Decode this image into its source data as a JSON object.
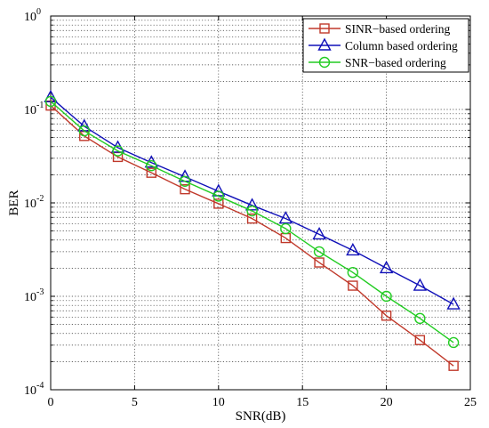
{
  "chart_data": {
    "type": "line",
    "xlabel": "SNR(dB)",
    "ylabel": "BER",
    "xlim": [
      0,
      25
    ],
    "ylim": [
      0.0001,
      1
    ],
    "yscale": "log",
    "grid": true,
    "legend_position": "top-right",
    "x_ticks": [
      "0",
      "5",
      "10",
      "15",
      "20",
      "25"
    ],
    "y_ticks": [
      {
        "base": "10",
        "exp": "0"
      },
      {
        "base": "10",
        "exp": "-1"
      },
      {
        "base": "10",
        "exp": "-2"
      },
      {
        "base": "10",
        "exp": "-3"
      },
      {
        "base": "10",
        "exp": "-4"
      }
    ],
    "x": [
      0,
      2,
      4,
      6,
      8,
      10,
      12,
      14,
      16,
      18,
      20,
      22,
      24
    ],
    "series": [
      {
        "name": "SINR−based ordering",
        "color": "#c0392b",
        "marker": "square",
        "values": [
          0.11,
          0.052,
          0.031,
          0.021,
          0.014,
          0.0098,
          0.0068,
          0.0042,
          0.0023,
          0.0013,
          0.00062,
          0.00034,
          0.00018
        ]
      },
      {
        "name": "Column based ordering",
        "color": "#1010b8",
        "marker": "triangle",
        "values": [
          0.135,
          0.066,
          0.039,
          0.027,
          0.019,
          0.0133,
          0.0094,
          0.0068,
          0.0046,
          0.0031,
          0.002,
          0.0013,
          0.00082
        ]
      },
      {
        "name": "SNR−based ordering",
        "color": "#22cc22",
        "marker": "circle",
        "values": [
          0.122,
          0.059,
          0.036,
          0.025,
          0.017,
          0.0118,
          0.0082,
          0.0053,
          0.003,
          0.0018,
          0.001,
          0.00058,
          0.00032
        ]
      }
    ]
  }
}
